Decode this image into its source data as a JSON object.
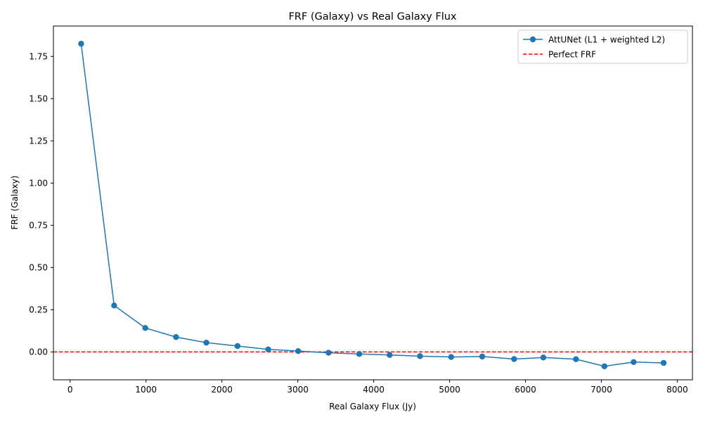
{
  "chart_data": {
    "type": "line",
    "title": "FRF (Galaxy) vs Real Galaxy Flux",
    "xlabel": "Real Galaxy Flux (Jy)",
    "ylabel": "FRF (Galaxy)",
    "xlim": [
      -220,
      8200
    ],
    "ylim": [
      -0.165,
      1.93
    ],
    "xticks": [
      0,
      1000,
      2000,
      3000,
      4000,
      5000,
      6000,
      7000,
      8000
    ],
    "xtick_labels": [
      "0",
      "1000",
      "2000",
      "3000",
      "4000",
      "5000",
      "6000",
      "7000",
      "8000"
    ],
    "yticks": [
      0.0,
      0.25,
      0.5,
      0.75,
      1.0,
      1.25,
      1.5,
      1.75
    ],
    "ytick_labels": [
      "0.00",
      "0.25",
      "0.50",
      "0.75",
      "1.00",
      "1.25",
      "1.50",
      "1.75"
    ],
    "grid": false,
    "legend_position": "top-right",
    "series": [
      {
        "name": "AttUNet (L1 + weighted L2)",
        "color": "#1f77b4",
        "marker": "circle",
        "x": [
          145,
          580,
          990,
          1395,
          1795,
          2205,
          2610,
          3005,
          3405,
          3810,
          4210,
          4610,
          5020,
          5430,
          5850,
          6235,
          6665,
          7040,
          7425,
          7820
        ],
        "y": [
          1.825,
          0.275,
          0.142,
          0.088,
          0.055,
          0.035,
          0.015,
          0.005,
          -0.005,
          -0.012,
          -0.018,
          -0.025,
          -0.03,
          -0.027,
          -0.042,
          -0.033,
          -0.043,
          -0.085,
          -0.06,
          -0.065
        ]
      }
    ],
    "reference_line": {
      "name": "Perfect FRF",
      "y": 0,
      "color": "#ff0000",
      "style": "dashed"
    }
  }
}
